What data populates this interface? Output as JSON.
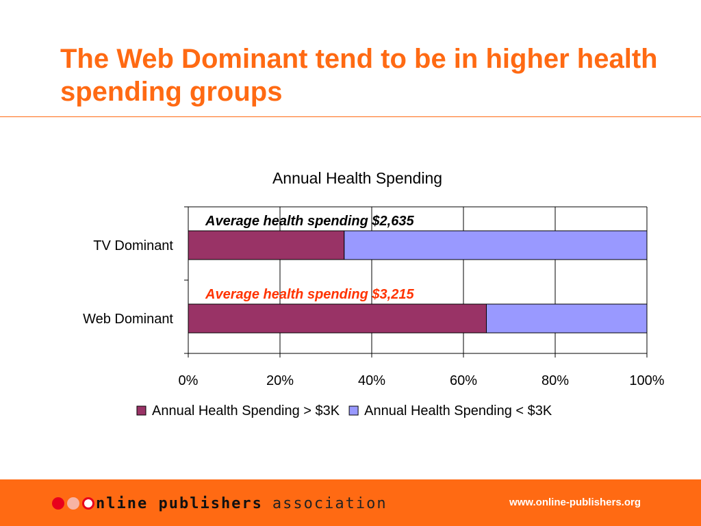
{
  "slide": {
    "title": "The Web Dominant tend to be in higher health spending groups"
  },
  "chart_data": {
    "type": "bar",
    "orientation": "horizontal",
    "stacked": true,
    "title": "Annual Health Spending",
    "categories": [
      "TV Dominant",
      "Web Dominant"
    ],
    "series": [
      {
        "name": "Annual Health Spending > $3K",
        "color": "#993366",
        "values": [
          34,
          65
        ]
      },
      {
        "name": "Annual Health Spending < $3K",
        "color": "#9999ff",
        "values": [
          66,
          35
        ]
      }
    ],
    "xlim": [
      0,
      100
    ],
    "xticks": [
      "0%",
      "20%",
      "40%",
      "60%",
      "80%",
      "100%"
    ],
    "grid": true,
    "legend": "bottom",
    "annotations": [
      {
        "text": "Average health spending $2,635",
        "color": "#000000",
        "category": "TV Dominant"
      },
      {
        "text": "Average health spending $3,215",
        "color": "#ff3300",
        "category": "Web Dominant"
      }
    ]
  },
  "footer": {
    "logo_bold": "nline publishers",
    "logo_light": "association",
    "url": "www.online-publishers.org",
    "logo_icons": [
      "red-dot-icon",
      "pink-dot-icon",
      "o-ring-icon"
    ]
  }
}
